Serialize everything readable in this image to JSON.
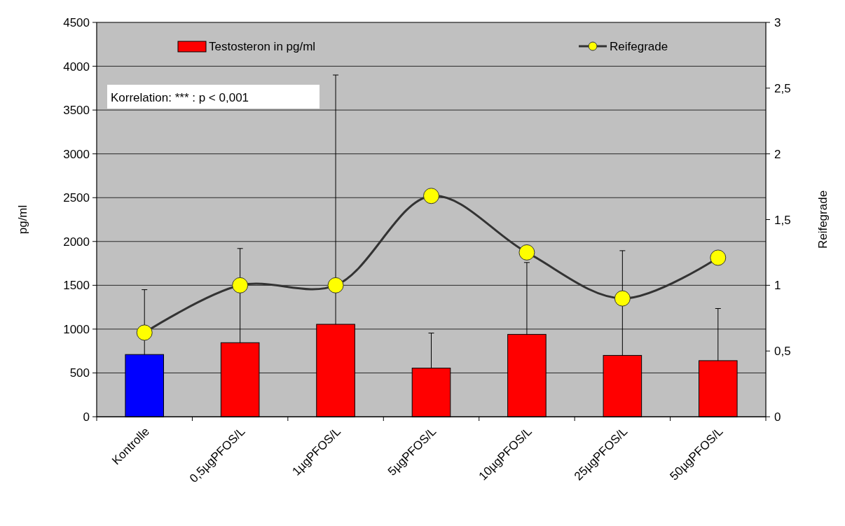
{
  "chart_data": {
    "type": "bar",
    "categories": [
      "Kontrolle",
      "0,5µgPFOS/L",
      "1µgPFOS/L",
      "5µgPFOS/L",
      "10µgPFOS/L",
      "25µgPFOS/L",
      "50µgPFOS/L"
    ],
    "series": [
      {
        "name": "Testosteron in pg/ml",
        "colors": [
          "#0000ff",
          "#ff0000",
          "#ff0000",
          "#ff0000",
          "#ff0000",
          "#ff0000",
          "#ff0000"
        ],
        "values": [
          710,
          845,
          1055,
          555,
          940,
          700,
          640
        ],
        "errors": [
          [
            710,
            1450
          ],
          [
            845,
            1920
          ],
          [
            1055,
            3900
          ],
          [
            555,
            955
          ],
          [
            940,
            1760
          ],
          [
            700,
            1895
          ],
          [
            640,
            1235
          ]
        ]
      },
      {
        "name": "Reifegrade",
        "type": "line",
        "axis": "y2",
        "color": "#333333",
        "marker": "circle",
        "values": [
          0.64,
          1.0,
          1.0,
          1.68,
          1.25,
          0.9,
          1.21
        ]
      }
    ],
    "ylabel": "pg/ml",
    "y2label": "Reifegrade",
    "ylim": [
      0,
      4500
    ],
    "yticks": [
      0,
      500,
      1000,
      1500,
      2000,
      2500,
      3000,
      3500,
      4000,
      4500
    ],
    "y2lim": [
      0,
      3
    ],
    "y2ticks": [
      0,
      {
        "value": 0.5,
        "label": "0,5"
      },
      1,
      {
        "value": 1.5,
        "label": "1,5"
      },
      2,
      {
        "value": 2.5,
        "label": "2,5"
      },
      3
    ],
    "grid": "y",
    "legend": "top",
    "annotations": [
      "Korrelation: *** : p < 0,001"
    ]
  }
}
